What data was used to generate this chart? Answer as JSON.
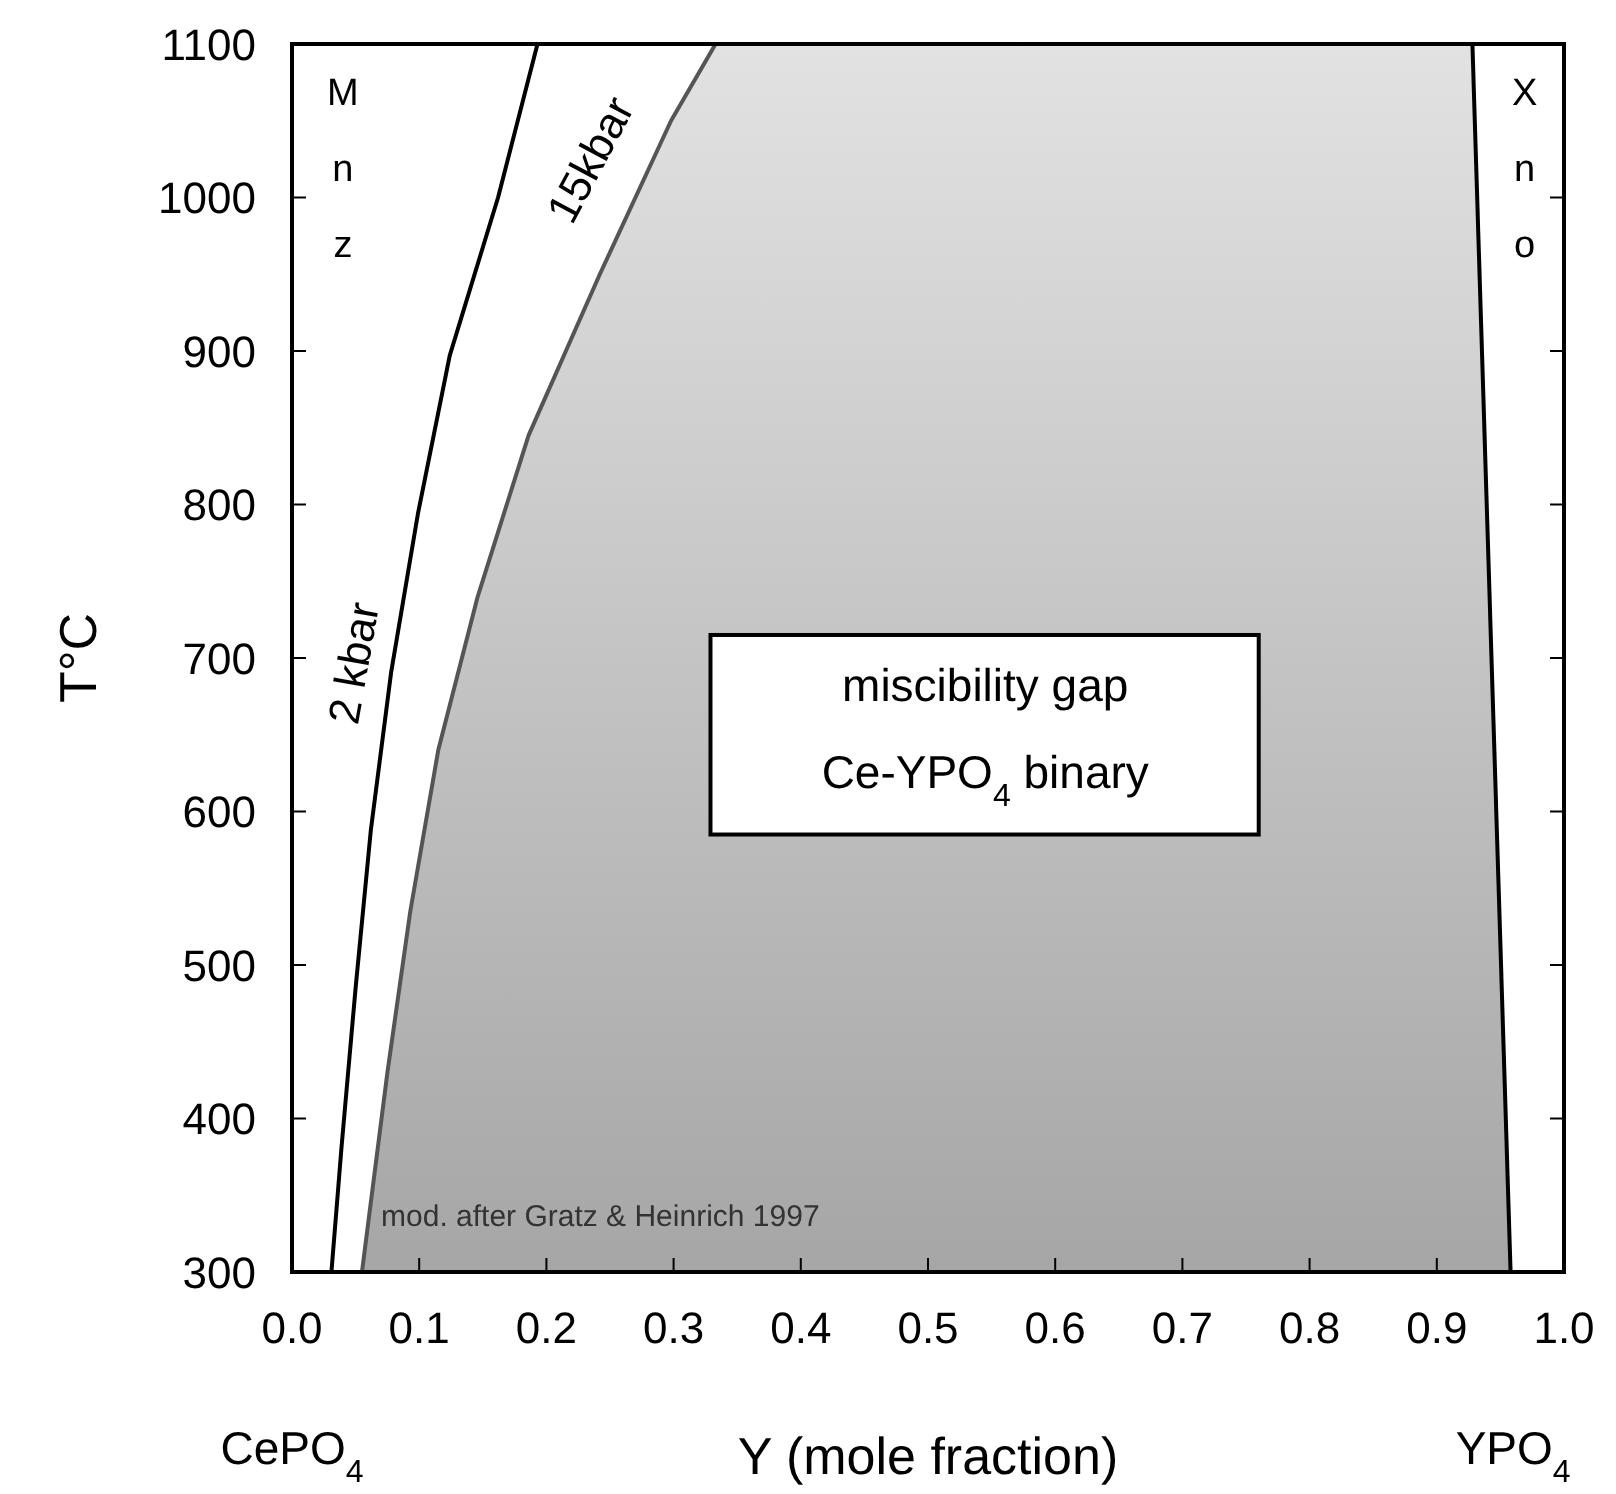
{
  "chart_data": {
    "type": "line",
    "xlabel": "Y (mole fraction)",
    "ylabel": "T°C",
    "xlim": [
      0,
      1
    ],
    "ylim": [
      300,
      1100
    ],
    "xticks": [
      {
        "value": 0,
        "label": "0.0"
      },
      {
        "value": 0.1,
        "label": "0.1"
      },
      {
        "value": 0.2,
        "label": "0.2"
      },
      {
        "value": 0.3,
        "label": "0.3"
      },
      {
        "value": 0.4,
        "label": "0.4"
      },
      {
        "value": 0.5,
        "label": "0.5"
      },
      {
        "value": 0.6,
        "label": "0.6"
      },
      {
        "value": 0.7,
        "label": "0.7"
      },
      {
        "value": 0.8,
        "label": "0.8"
      },
      {
        "value": 0.9,
        "label": "0.9"
      },
      {
        "value": 1,
        "label": "1.0"
      }
    ],
    "yticks": [
      300,
      400,
      500,
      600,
      700,
      800,
      900,
      1000,
      1100
    ],
    "series": [
      {
        "name": "2 kbar",
        "color": "#000000",
        "x": [
          0.031,
          0.039,
          0.05,
          0.062,
          0.078,
          0.099,
          0.124,
          0.162,
          0.193
        ],
        "values": [
          300,
          382,
          485,
          588,
          691,
          794,
          897,
          1000,
          1100
        ]
      },
      {
        "name": "15kbar",
        "color": "#555555",
        "x": [
          0.055,
          0.075,
          0.093,
          0.115,
          0.146,
          0.186,
          0.242,
          0.298,
          0.333
        ],
        "values": [
          300,
          430,
          535,
          640,
          740,
          845,
          950,
          1050,
          1100
        ]
      },
      {
        "color": "#000000",
        "x": [
          0.958,
          0.928
        ],
        "values": [
          300,
          1100
        ]
      }
    ],
    "annotations": [
      "Mnz",
      "Xno",
      "miscibility gap",
      "Ce-YPO$_{4}$ binary",
      "mod. after Gratz & Heinrich 1997",
      "CePO$_{4}$",
      "YPO$_{4}$"
    ]
  }
}
